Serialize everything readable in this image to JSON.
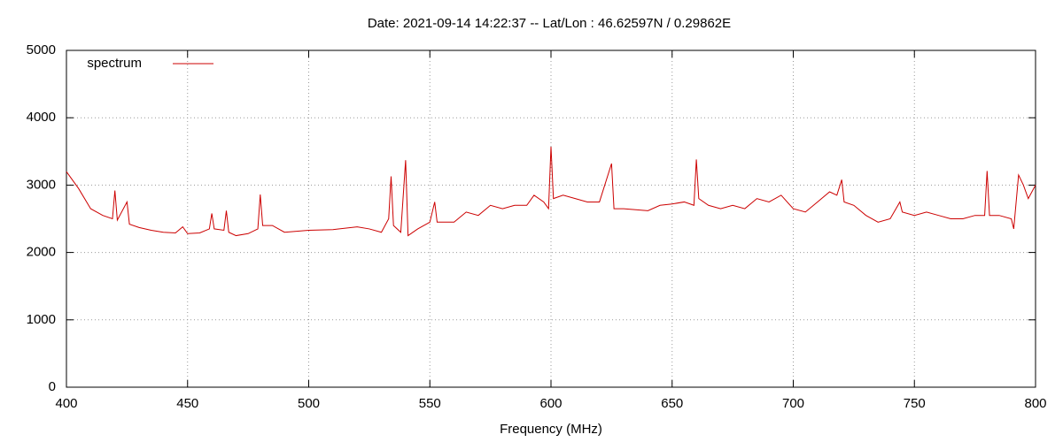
{
  "chart_data": {
    "type": "line",
    "title": "Date: 2021-09-14 14:22:37  --  Lat/Lon : 46.62597N / 0.29862E",
    "x_label": "Frequency (MHz)",
    "x": [
      400,
      405,
      410,
      415,
      419,
      420,
      421,
      425,
      426,
      430,
      435,
      440,
      445,
      448,
      450,
      455,
      459,
      460,
      461,
      465,
      466,
      467,
      470,
      475,
      479,
      480,
      481,
      485,
      490,
      500,
      510,
      520,
      525,
      530,
      533,
      534,
      535,
      538,
      540,
      541,
      545,
      550,
      552,
      553,
      560,
      565,
      570,
      575,
      580,
      585,
      590,
      593,
      597,
      599,
      600,
      601,
      605,
      610,
      615,
      620,
      625,
      626,
      630,
      640,
      645,
      650,
      655,
      659,
      660,
      661,
      665,
      670,
      675,
      680,
      685,
      690,
      695,
      700,
      705,
      710,
      715,
      718,
      720,
      721,
      725,
      730,
      735,
      740,
      744,
      745,
      750,
      755,
      760,
      765,
      770,
      775,
      779,
      780,
      781,
      785,
      790,
      791,
      793,
      795,
      797,
      800
    ],
    "series": [
      {
        "name": "spectrum",
        "color": "#cc0000",
        "values": [
          3200,
          2950,
          2650,
          2550,
          2500,
          2920,
          2480,
          2750,
          2420,
          2370,
          2330,
          2300,
          2290,
          2380,
          2280,
          2290,
          2350,
          2580,
          2350,
          2330,
          2620,
          2300,
          2250,
          2280,
          2350,
          2860,
          2400,
          2400,
          2300,
          2330,
          2340,
          2380,
          2350,
          2300,
          2500,
          3130,
          2400,
          2300,
          3370,
          2250,
          2350,
          2450,
          2750,
          2450,
          2450,
          2600,
          2550,
          2700,
          2650,
          2700,
          2700,
          2850,
          2750,
          2650,
          3570,
          2800,
          2850,
          2800,
          2750,
          2750,
          3320,
          2650,
          2650,
          2620,
          2700,
          2720,
          2750,
          2700,
          3380,
          2800,
          2700,
          2650,
          2700,
          2650,
          2800,
          2750,
          2850,
          2650,
          2600,
          2750,
          2900,
          2850,
          3080,
          2750,
          2700,
          2550,
          2450,
          2500,
          2750,
          2600,
          2550,
          2600,
          2550,
          2500,
          2500,
          2550,
          2550,
          3210,
          2550,
          2550,
          2500,
          2350,
          3150,
          3000,
          2800,
          3000
        ]
      }
    ],
    "xlim": [
      400,
      800
    ],
    "xticks": [
      400,
      450,
      500,
      550,
      600,
      650,
      700,
      750,
      800
    ],
    "ylim": [
      0,
      5000
    ],
    "yticks": [
      0,
      1000,
      2000,
      3000,
      4000,
      5000
    ],
    "grid": true,
    "legend": "top-left"
  }
}
